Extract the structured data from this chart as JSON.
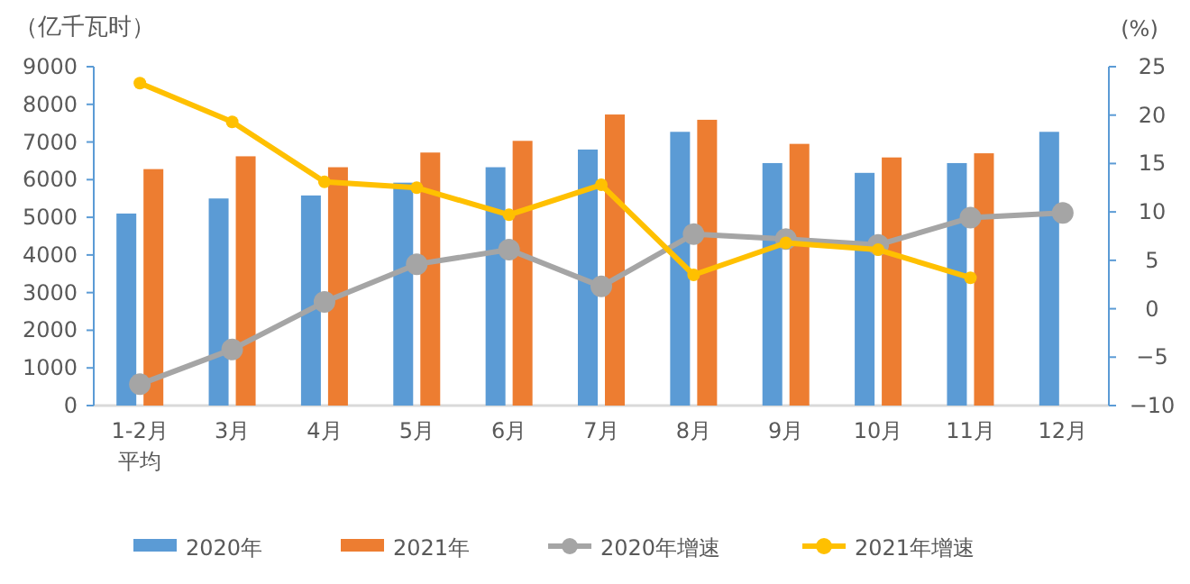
{
  "chart_data": {
    "type": "bar",
    "ylabel": "（亿千瓦时）",
    "y2label": "(%)",
    "categories": [
      "1-2月平均",
      "3月",
      "4月",
      "5月",
      "6月",
      "7月",
      "8月",
      "9月",
      "10月",
      "11月",
      "12月"
    ],
    "series": [
      {
        "name": "2020年",
        "color": "#5b9bd5",
        "values": [
          5100,
          5500,
          5580,
          5920,
          6330,
          6800,
          7270,
          6440,
          6180,
          6440,
          7270
        ]
      },
      {
        "name": "2021年",
        "color": "#ed7d31",
        "values": [
          6280,
          6620,
          6330,
          6720,
          7030,
          7730,
          7590,
          6950,
          6590,
          6700,
          null
        ]
      },
      {
        "name": "2020年增速",
        "type": "line",
        "axis": "y2",
        "color": "#a5a5a5",
        "values": [
          -7.8,
          -4.2,
          0.7,
          4.6,
          6.1,
          2.3,
          7.7,
          7.2,
          6.6,
          9.4,
          9.9
        ]
      },
      {
        "name": "2021年增速",
        "type": "line",
        "axis": "y2",
        "color": "#ffc000",
        "values": [
          23.3,
          19.3,
          13.1,
          12.5,
          9.7,
          12.8,
          3.5,
          6.8,
          6.1,
          3.2,
          null
        ]
      }
    ],
    "ylim": [
      0,
      9000
    ],
    "yticks": [
      0,
      1000,
      2000,
      3000,
      4000,
      5000,
      6000,
      7000,
      8000,
      9000
    ],
    "y2lim": [
      -10,
      25
    ],
    "y2ticks": [
      -10,
      -5,
      0,
      5,
      10,
      15,
      20,
      25
    ],
    "grid": false,
    "legend": "bottom",
    "marker": "circle",
    "line_style": "solid"
  }
}
